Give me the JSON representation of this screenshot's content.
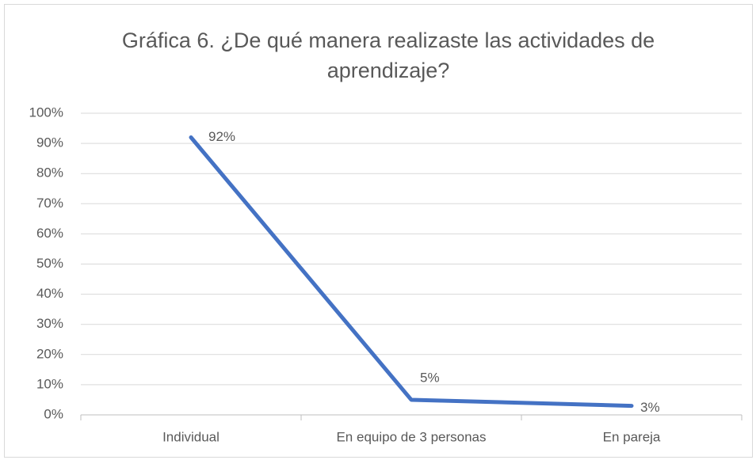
{
  "chart_data": {
    "type": "line",
    "title": "Gráfica 6. ¿De qué manera realizaste las actividades de aprendizaje?",
    "categories": [
      "Individual",
      "En equipo de 3 personas",
      "En pareja"
    ],
    "series": [
      {
        "color": "#4472c4",
        "values": [
          92,
          5,
          3
        ],
        "value_labels": [
          "92%",
          "5%",
          "3%"
        ]
      }
    ],
    "ylim": [
      0,
      100
    ],
    "yticks": [
      {
        "value": 0,
        "label": "0%"
      },
      {
        "value": 10,
        "label": "10%"
      },
      {
        "value": 20,
        "label": "20%"
      },
      {
        "value": 30,
        "label": "30%"
      },
      {
        "value": 40,
        "label": "40%"
      },
      {
        "value": 50,
        "label": "50%"
      },
      {
        "value": 60,
        "label": "60%"
      },
      {
        "value": 70,
        "label": "70%"
      },
      {
        "value": 80,
        "label": "80%"
      },
      {
        "value": 90,
        "label": "90%"
      },
      {
        "value": 100,
        "label": "100%"
      }
    ],
    "grid": true
  }
}
